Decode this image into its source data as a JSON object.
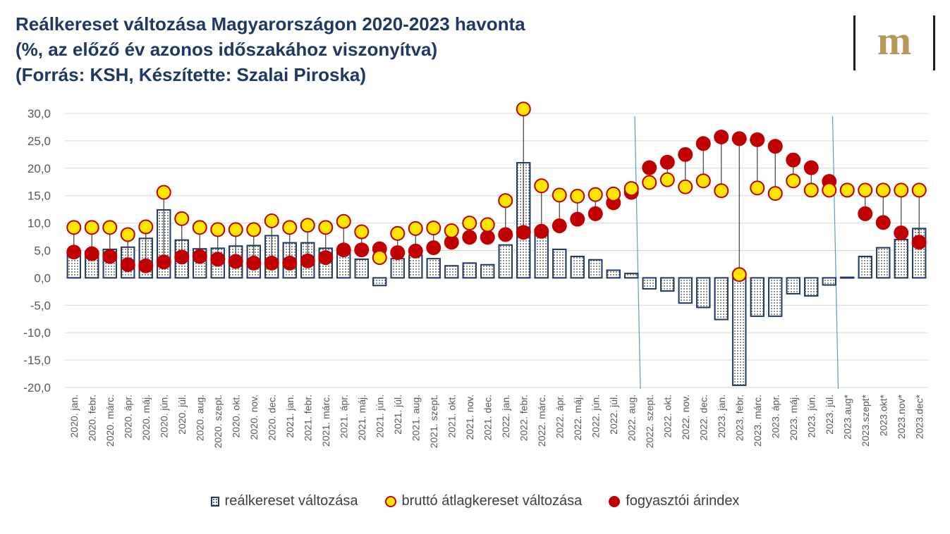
{
  "title_lines": [
    "Reálkereset változása Magyarországon 2020-2023 havonta",
    "(%, az előző év azonos időszakához viszonyítva)",
    "(Forrás: KSH, Készítette: Szalai Piroska)"
  ],
  "logo": {
    "text": "m",
    "icon": "m-logo-icon",
    "color": "#b9975b"
  },
  "colors": {
    "axis_text": "#595959",
    "bar_border": "#1f3864",
    "bar_dots": "#333333",
    "yellow": "#ffe600",
    "yellow_border": "#c00000",
    "red": "#c00000",
    "drop_line": "#404040",
    "grid": "#d9d9d9",
    "divider": "#5b9bd5"
  },
  "chart_data": {
    "type": "bar",
    "title": "Reálkereset változása Magyarországon 2020-2023 havonta",
    "ylim": [
      -20,
      30
    ],
    "y_ticks": [
      "30,0",
      "25,0",
      "20,0",
      "15,0",
      "10,0",
      "5,0",
      "0,0",
      "-5,0",
      "-10,0",
      "-15,0",
      "-20,0"
    ],
    "y_tick_values": [
      30,
      25,
      20,
      15,
      10,
      5,
      0,
      -5,
      -10,
      -15,
      -20
    ],
    "grid": true,
    "legend_position": "bottom",
    "categories": [
      "2020. jan.",
      "2020. febr.",
      "2020. márc.",
      "2020. ápr.",
      "2020. máj.",
      "2020. jún.",
      "2020. júl.",
      "2020. aug.",
      "2020. szept.",
      "2020. okt.",
      "2020. nov.",
      "2020. dec.",
      "2021. jan.",
      "2021. febr.",
      "2021. márc.",
      "2021. ápr.",
      "2021. máj.",
      "2021. jún.",
      "2021. júl.",
      "2021. aug.",
      "2021. szept.",
      "2021. okt.",
      "2021. nov.",
      "2021. dec.",
      "2022. jan.",
      "2022. febr.",
      "2022. márc.",
      "2022. ápr.",
      "2022. máj.",
      "2022. jún.",
      "2022. júl.",
      "2022. aug.",
      "2022. szept.",
      "2022. okt.",
      "2022. nov.",
      "2022. dec.",
      "2023. jan.",
      "2023. febr.",
      "2023. márc.",
      "2023. ápr.",
      "2023. máj.",
      "2023. jún.",
      "2023. júl.",
      "2023.aug*",
      "2023.szept*",
      "2023.okt*",
      "2023.nov*",
      "2023.dec*"
    ],
    "series": [
      {
        "name": "reálkereset változása",
        "kind": "bar",
        "values": [
          4.4,
          4.8,
          5.2,
          5.6,
          7.2,
          12.4,
          6.9,
          5.3,
          5.4,
          5.8,
          5.9,
          7.7,
          6.4,
          6.4,
          5.4,
          5.2,
          3.4,
          -1.4,
          3.5,
          4.1,
          3.5,
          2.2,
          2.7,
          2.4,
          6.0,
          21.0,
          8.3,
          5.2,
          3.9,
          3.3,
          1.4,
          0.8,
          -2.0,
          -2.4,
          -4.6,
          -5.4,
          -7.6,
          -19.6,
          -7.0,
          -7.0,
          -2.9,
          -3.3,
          -1.3,
          0.1,
          3.9,
          5.5,
          7.0,
          9.0
        ]
      },
      {
        "name": "bruttó átlagkereset változása",
        "kind": "marker",
        "values": [
          9.2,
          9.2,
          9.2,
          7.9,
          9.3,
          15.6,
          10.8,
          9.2,
          8.8,
          8.8,
          8.8,
          10.4,
          9.2,
          9.6,
          9.2,
          10.3,
          8.4,
          3.7,
          8.1,
          9.0,
          9.1,
          8.6,
          10.0,
          9.7,
          14.1,
          30.8,
          16.8,
          15.1,
          14.9,
          15.2,
          15.3,
          16.3,
          17.4,
          17.9,
          16.6,
          17.7,
          15.9,
          0.6,
          16.4,
          15.4,
          17.7,
          16.0,
          16.0,
          16.0,
          16.0,
          16.0,
          16.0,
          16.0
        ]
      },
      {
        "name": "fogyasztói árindex",
        "kind": "marker",
        "values": [
          4.7,
          4.4,
          3.9,
          2.4,
          2.2,
          2.9,
          3.8,
          3.9,
          3.4,
          3.0,
          2.7,
          2.7,
          2.7,
          3.1,
          3.7,
          5.1,
          5.1,
          5.3,
          4.6,
          4.9,
          5.5,
          6.5,
          7.4,
          7.4,
          7.9,
          8.3,
          8.5,
          9.5,
          10.7,
          11.7,
          13.7,
          15.6,
          20.1,
          21.1,
          22.5,
          24.5,
          25.7,
          25.4,
          25.2,
          24.0,
          21.5,
          20.1,
          17.6,
          16.0,
          11.7,
          10.1,
          8.2,
          6.5
        ]
      }
    ]
  }
}
